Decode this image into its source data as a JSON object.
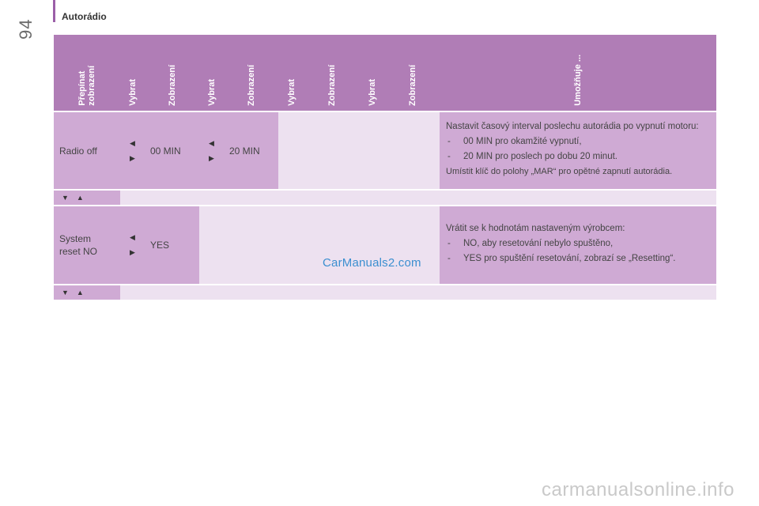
{
  "page": {
    "number": "94",
    "section": "Autorádio"
  },
  "header": {
    "columns": [
      "Přepínat\nzobrazení",
      "Vybrat",
      "Zobrazení",
      "Vybrat",
      "Zobrazení",
      "Vybrat",
      "Zobrazení",
      "Vybrat",
      "Zobrazení",
      "Umožňuje ..."
    ]
  },
  "rows": [
    {
      "switch_label": "Radio off",
      "value1": "00 MIN",
      "value2": "20 MIN",
      "desc_intro": "Nastavit časový interval poslechu autorádia po vypnutí motoru:",
      "desc_items": [
        "00 MIN pro okamžité vypnutí,",
        "20 MIN pro poslech po dobu 20 minut."
      ],
      "desc_note": "Umístit klíč do polohy „MAR“ pro opětné zapnutí autorádia."
    },
    {
      "switch_label": "System\nreset NO",
      "value1": "YES",
      "desc_intro": "Vrátit se k hodnotám nastaveným výrobcem:",
      "desc_items": [
        "NO, aby resetování nebylo spuštěno,",
        "YES pro spuštění resetování, zobrazí se „Resetting“."
      ]
    }
  ],
  "icons": {
    "left": "triangle-left-icon",
    "right": "triangle-right-icon",
    "down": "triangle-down-icon",
    "up": "triangle-up-icon"
  },
  "colors": {
    "header": "#b07db6",
    "cell": "#cfaad4",
    "light": "#ede1f0",
    "accent": "#9b5fa8"
  },
  "watermark": "CarManuals2.com",
  "footer_watermark": "carmanualsonline.info"
}
